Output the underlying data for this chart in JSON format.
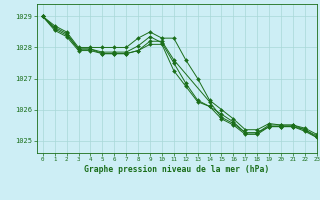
{
  "title": "Graphe pression niveau de la mer (hPa)",
  "bg_color": "#cdeef5",
  "line_color": "#1a6e1a",
  "grid_color": "#a8d8d8",
  "xlim": [
    -0.5,
    23
  ],
  "ylim": [
    1024.6,
    1029.4
  ],
  "yticks": [
    1025,
    1026,
    1027,
    1028,
    1029
  ],
  "xticks": [
    0,
    1,
    2,
    3,
    4,
    5,
    6,
    7,
    8,
    9,
    10,
    11,
    12,
    13,
    14,
    15,
    16,
    17,
    18,
    19,
    20,
    21,
    22,
    23
  ],
  "series": [
    {
      "x": [
        0,
        1,
        2,
        3,
        4,
        5,
        6,
        7,
        8,
        9,
        10,
        11,
        12,
        13,
        14,
        15,
        16,
        17,
        18,
        19,
        20,
        21,
        22,
        23
      ],
      "y": [
        1029.0,
        1028.7,
        1028.5,
        1028.0,
        1028.0,
        1028.0,
        1028.0,
        1028.0,
        1028.3,
        1028.5,
        1028.3,
        1028.3,
        1027.6,
        1027.0,
        1026.3,
        1026.0,
        1025.7,
        1025.35,
        1025.35,
        1025.55,
        1025.5,
        1025.5,
        1025.4,
        1025.2
      ]
    },
    {
      "x": [
        0,
        1,
        2,
        3,
        4,
        5,
        6,
        7,
        8,
        9,
        10,
        11,
        12,
        13,
        14,
        15,
        16,
        17,
        18,
        19,
        20,
        21,
        22,
        23
      ],
      "y": [
        1029.0,
        1028.65,
        1028.45,
        1027.95,
        1027.95,
        1027.85,
        1027.85,
        1027.85,
        1028.05,
        1028.35,
        1028.15,
        1027.5,
        1026.85,
        1026.3,
        1026.1,
        1025.85,
        1025.6,
        1025.25,
        1025.25,
        1025.5,
        1025.5,
        1025.5,
        1025.35,
        1025.15
      ]
    },
    {
      "x": [
        0,
        1,
        2,
        3,
        4,
        5,
        6,
        7,
        8,
        9,
        10,
        11,
        14,
        15,
        16,
        17,
        18,
        19,
        20,
        21,
        22,
        23
      ],
      "y": [
        1029.0,
        1028.6,
        1028.4,
        1027.95,
        1027.95,
        1027.8,
        1027.8,
        1027.8,
        1027.9,
        1028.2,
        1028.2,
        1027.6,
        1026.25,
        1025.75,
        1025.55,
        1025.25,
        1025.25,
        1025.45,
        1025.45,
        1025.45,
        1025.35,
        1025.1
      ]
    },
    {
      "x": [
        0,
        1,
        2,
        3,
        4,
        5,
        6,
        7,
        8,
        9,
        10,
        11,
        12,
        13,
        14,
        15,
        16,
        17,
        18,
        19,
        20,
        21,
        22,
        23
      ],
      "y": [
        1029.0,
        1028.55,
        1028.35,
        1027.9,
        1027.9,
        1027.8,
        1027.8,
        1027.8,
        1027.9,
        1028.1,
        1028.1,
        1027.25,
        1026.75,
        1026.25,
        1026.1,
        1025.7,
        1025.5,
        1025.2,
        1025.2,
        1025.45,
        1025.45,
        1025.45,
        1025.3,
        1025.1
      ]
    }
  ]
}
